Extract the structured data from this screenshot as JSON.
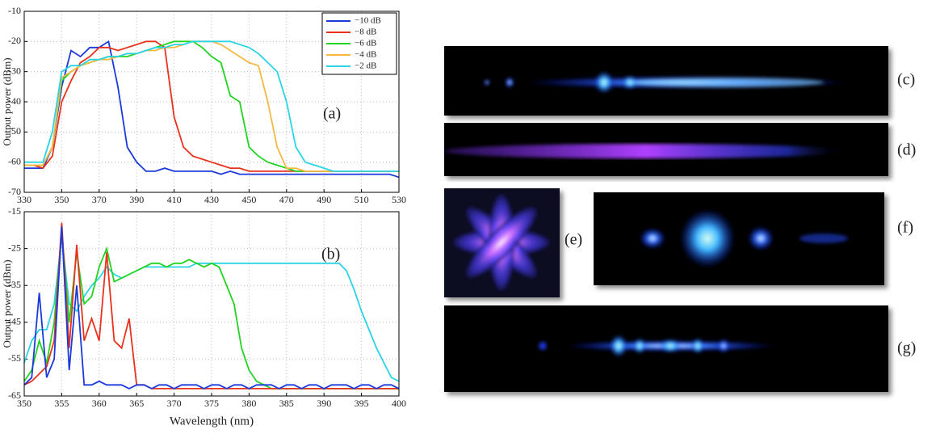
{
  "chart_data": [
    {
      "type": "line",
      "y_label": "Output power (dBm)",
      "annotation": "(a)",
      "x": [
        330,
        335,
        340,
        345,
        350,
        355,
        360,
        365,
        370,
        375,
        380,
        385,
        390,
        395,
        400,
        405,
        410,
        415,
        420,
        425,
        430,
        435,
        440,
        445,
        450,
        455,
        460,
        465,
        470,
        475,
        480,
        485,
        490,
        495,
        500,
        505,
        510,
        515,
        520,
        525,
        530
      ],
      "xlim": [
        330,
        530
      ],
      "xticks": [
        330,
        350,
        370,
        390,
        410,
        430,
        450,
        470,
        490,
        510,
        530
      ],
      "ylim": [
        -70,
        -10
      ],
      "yticks": [
        -70,
        -60,
        -50,
        -40,
        -30,
        -20,
        -10
      ],
      "grid": true,
      "legend": "upper right",
      "series": [
        {
          "name": "−10 dB",
          "color": "#1a3adb",
          "values": [
            -62,
            -62,
            -62,
            -55,
            -35,
            -23,
            -25,
            -22,
            -22,
            -20,
            -35,
            -55,
            -60,
            -63,
            -63,
            -62,
            -63,
            -63,
            -63,
            -63,
            -63,
            -64,
            -63,
            -64,
            -64,
            -64,
            -64,
            -64,
            -64,
            -64,
            -64,
            -64,
            -64,
            -64,
            -64,
            -64,
            -64,
            -64,
            -64,
            -64,
            -65
          ]
        },
        {
          "name": "−8 dB",
          "color": "#e8321c",
          "values": [
            -61,
            -61,
            -62,
            -58,
            -40,
            -33,
            -27,
            -25,
            -22,
            -22,
            -23,
            -22,
            -21,
            -20,
            -20,
            -22,
            -45,
            -55,
            -58,
            -59,
            -60,
            -61,
            -62,
            -62,
            -63,
            -63,
            -63,
            -63,
            -63,
            -63,
            -63,
            -63,
            -63,
            -63,
            -63,
            -63,
            -63,
            -63,
            -63,
            -63,
            -63
          ]
        },
        {
          "name": "−6 dB",
          "color": "#22d422",
          "values": [
            -61,
            -61,
            -61,
            -55,
            -33,
            -30,
            -28,
            -27,
            -26,
            -25,
            -25,
            -25,
            -24,
            -23,
            -22,
            -21,
            -20,
            -20,
            -20,
            -22,
            -25,
            -27,
            -38,
            -40,
            -55,
            -58,
            -60,
            -61,
            -62,
            -63,
            -63,
            -63,
            -63,
            -63,
            -63,
            -63,
            -63,
            -63,
            -63,
            -63,
            -63
          ]
        },
        {
          "name": "−4 dB",
          "color": "#f5b942",
          "values": [
            -61,
            -61,
            -61,
            -55,
            -32,
            -30,
            -28,
            -27,
            -26,
            -26,
            -25,
            -24,
            -24,
            -23,
            -23,
            -22,
            -22,
            -21,
            -20,
            -20,
            -20,
            -21,
            -23,
            -25,
            -27,
            -28,
            -40,
            -55,
            -62,
            -62,
            -63,
            -63,
            -63,
            -63,
            -63,
            -63,
            -63,
            -63,
            -63,
            -63,
            -63
          ]
        },
        {
          "name": "−2 dB",
          "color": "#2ad4e6",
          "values": [
            -60,
            -60,
            -60,
            -50,
            -30,
            -28,
            -28,
            -26,
            -26,
            -25,
            -25,
            -24,
            -24,
            -23,
            -22,
            -22,
            -21,
            -21,
            -20,
            -20,
            -20,
            -20,
            -20,
            -21,
            -22,
            -24,
            -27,
            -30,
            -40,
            -55,
            -60,
            -61,
            -62,
            -63,
            -63,
            -63,
            -63,
            -63,
            -63,
            -63,
            -63
          ]
        }
      ]
    },
    {
      "type": "line",
      "y_label": "Output power (dBm)",
      "x_label": "Wavelength (nm)",
      "annotation": "(b)",
      "x": [
        350,
        351,
        352,
        353,
        354,
        355,
        356,
        357,
        358,
        359,
        360,
        361,
        362,
        363,
        364,
        365,
        366,
        367,
        368,
        369,
        370,
        371,
        372,
        373,
        374,
        375,
        376,
        377,
        378,
        379,
        380,
        381,
        382,
        383,
        384,
        385,
        386,
        387,
        388,
        389,
        390,
        391,
        392,
        393,
        394,
        395,
        396,
        397,
        398,
        399,
        400
      ],
      "xlim": [
        350,
        400
      ],
      "xticks": [
        350,
        355,
        360,
        365,
        370,
        375,
        380,
        385,
        390,
        395,
        400
      ],
      "ylim": [
        -65,
        -15
      ],
      "yticks": [
        -65,
        -55,
        -45,
        -35,
        -25,
        -15
      ],
      "grid": true,
      "series": [
        {
          "color": "#2ad4e6",
          "values": [
            -56,
            -50,
            -47,
            -47,
            -40,
            -22,
            -40,
            -42,
            -38,
            -35,
            -33,
            -30,
            -32,
            -33,
            -32,
            -31,
            -30,
            -30,
            -30,
            -30,
            -30,
            -30,
            -30,
            -29,
            -29,
            -29,
            -29,
            -29,
            -29,
            -29,
            -29,
            -29,
            -29,
            -29,
            -29,
            -29,
            -29,
            -29,
            -29,
            -29,
            -29,
            -29,
            -29,
            -31,
            -36,
            -42,
            -47,
            -52,
            -56,
            -60,
            -61
          ]
        },
        {
          "color": "#22d422",
          "values": [
            -61,
            -58,
            -50,
            -56,
            -45,
            -20,
            -45,
            -26,
            -40,
            -38,
            -30,
            -25,
            -34,
            -33,
            -32,
            -31,
            -30,
            -29,
            -29,
            -30,
            -29,
            -29,
            -28,
            -29,
            -30,
            -29,
            -30,
            -35,
            -40,
            -52,
            -58,
            -61,
            -62,
            -63,
            -63,
            -63,
            -63,
            -63,
            -63,
            -63,
            -63,
            -63,
            -63,
            -63,
            -63,
            -63,
            -63,
            -63,
            -63,
            -63,
            -63
          ]
        },
        {
          "color": "#e8321c",
          "values": [
            -62,
            -61,
            -59,
            -57,
            -50,
            -18,
            -52,
            -24,
            -50,
            -44,
            -50,
            -26,
            -50,
            -52,
            -44,
            -62,
            -62,
            -63,
            -63,
            -63,
            -63,
            -63,
            -63,
            -63,
            -63,
            -63,
            -63,
            -63,
            -63,
            -63,
            -63,
            -63,
            -63,
            -63,
            -63,
            -63,
            -63,
            -63,
            -63,
            -63,
            -63,
            -63,
            -63,
            -63,
            -63,
            -63,
            -63,
            -63,
            -63,
            -63,
            -63
          ]
        },
        {
          "color": "#1a3adb",
          "values": [
            -62,
            -60,
            -37,
            -60,
            -55,
            -19,
            -58,
            -35,
            -62,
            -62,
            -61,
            -62,
            -62,
            -62,
            -63,
            -62,
            -62,
            -63,
            -62,
            -62,
            -63,
            -62,
            -62,
            -62,
            -63,
            -62,
            -62,
            -63,
            -62,
            -62,
            -63,
            -62,
            -62,
            -62,
            -63,
            -62,
            -62,
            -63,
            -62,
            -62,
            -63,
            -62,
            -62,
            -62,
            -63,
            -62,
            -62,
            -63,
            -62,
            -62,
            -63
          ]
        }
      ]
    }
  ],
  "panels": [
    {
      "label": "(c)"
    },
    {
      "label": "(d)"
    },
    {
      "label": "(e)"
    },
    {
      "label": "(f)"
    },
    {
      "label": "(g)"
    }
  ]
}
